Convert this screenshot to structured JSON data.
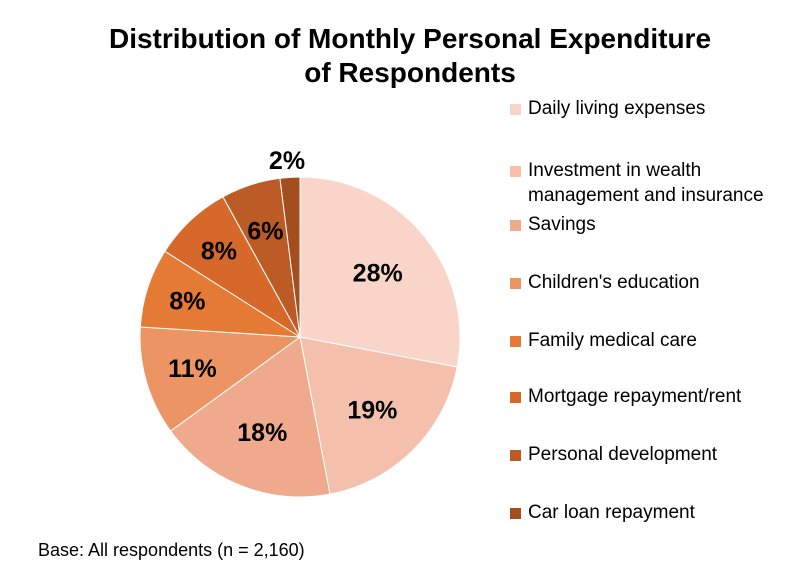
{
  "chart_data": {
    "type": "pie",
    "title_lines": [
      "Distribution of Monthly Personal Expenditure",
      "of Respondents"
    ],
    "categories": [
      "Daily living expenses",
      "Investment in wealth management and insurance",
      "Savings",
      "Children's education",
      "Family medical care",
      "Mortgage repayment/rent",
      "Personal development",
      "Car loan repayment"
    ],
    "legend_lines": [
      [
        "Daily living expenses"
      ],
      [
        "Investment in wealth",
        "management and insurance"
      ],
      [
        "Savings"
      ],
      [
        "Children's education"
      ],
      [
        "Family medical care"
      ],
      [
        "Mortgage repayment/rent"
      ],
      [
        "Personal development"
      ],
      [
        "Car loan repayment"
      ]
    ],
    "values": [
      28,
      19,
      18,
      11,
      8,
      8,
      6,
      2
    ],
    "data_labels": [
      "28%",
      "19%",
      "18%",
      "11%",
      "8%",
      "8%",
      "6%",
      "2%"
    ],
    "colors": [
      "#f8d5c8",
      "#f4c0ab",
      "#efa98d",
      "#ec9464",
      "#e57a34",
      "#d6692a",
      "#bc5b26",
      "#a44d1f"
    ],
    "legend_position": "right",
    "start_angle_deg": 0,
    "direction": "clockwise"
  },
  "footnote": "Base: All respondents (n = 2,160)"
}
